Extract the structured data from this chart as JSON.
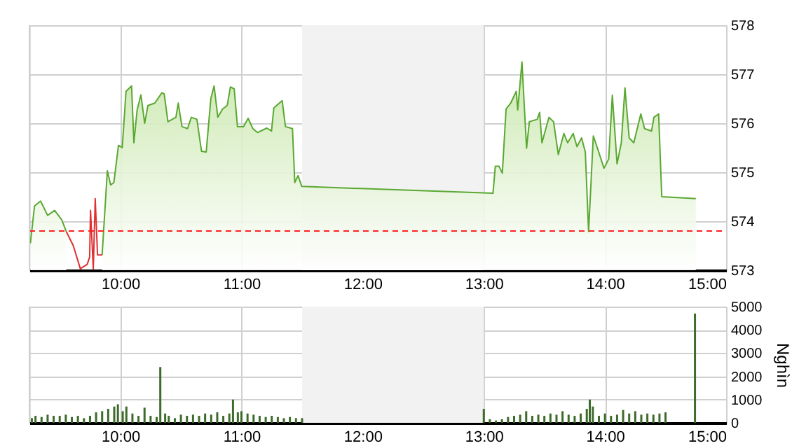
{
  "chart_data": [
    {
      "type": "area",
      "xlim": [
        9.25,
        15
      ],
      "ylim": [
        573,
        578
      ],
      "yticks": [
        573,
        574,
        575,
        576,
        577,
        578
      ],
      "xticks": [
        {
          "value": 10,
          "label": "10:00"
        },
        {
          "value": 11,
          "label": "11:00"
        },
        {
          "value": 12,
          "label": "12:00"
        },
        {
          "value": 13,
          "label": "13:00"
        },
        {
          "value": 14,
          "label": "14:00"
        },
        {
          "value": 15,
          "label": "15:00"
        }
      ],
      "grid": true,
      "legend": false,
      "bands": [
        {
          "axis": "x",
          "from": 11.5,
          "to": 13.0,
          "color": "#f2f2f2"
        }
      ],
      "ref_lines": [
        {
          "axis": "y",
          "value": 573.8,
          "color": "#ff2020",
          "line_style": "dashed"
        }
      ],
      "series": [
        {
          "type": "area",
          "color": "#5aa832",
          "x": [
            9.258,
            9.292,
            9.342,
            9.4,
            9.458,
            9.516,
            9.554,
            9.612,
            9.67,
            9.727,
            9.747,
            9.754,
            9.777,
            9.793,
            9.812,
            9.85,
            9.893,
            9.92,
            9.947,
            9.985,
            10.016,
            10.047,
            10.093,
            10.112,
            10.139,
            10.17,
            10.201,
            10.228,
            10.285,
            10.343,
            10.362,
            10.393,
            10.459,
            10.478,
            10.509,
            10.555,
            10.586,
            10.632,
            10.67,
            10.709,
            10.747,
            10.774,
            10.805,
            10.844,
            10.882,
            10.909,
            10.94,
            10.967,
            11.017,
            11.055,
            11.094,
            11.132,
            11.209,
            11.248,
            11.267,
            11.336,
            11.363,
            11.421,
            11.44,
            11.467,
            11.498,
            13.076,
            13.095,
            13.126,
            13.153,
            13.184,
            13.222,
            13.268,
            13.28,
            13.315,
            13.353,
            13.376,
            13.442,
            13.461,
            13.48,
            13.538,
            13.576,
            13.615,
            13.661,
            13.692,
            13.738,
            13.769,
            13.807,
            13.838,
            13.865,
            13.904,
            13.942,
            13.992,
            14.031,
            14.061,
            14.1,
            14.135,
            14.165,
            14.2,
            14.238,
            14.296,
            14.327,
            14.385,
            14.404,
            14.443,
            14.469,
            14.75
          ],
          "values": [
            573.55,
            574.31,
            574.41,
            574.12,
            574.22,
            574.03,
            573.79,
            null,
            null,
            null,
            null,
            null,
            null,
            null,
            null,
            573.31,
            575.03,
            574.74,
            574.79,
            575.55,
            575.5,
            576.65,
            576.76,
            575.6,
            576.27,
            576.58,
            576.0,
            576.36,
            576.41,
            576.62,
            576.6,
            576.03,
            576.12,
            576.41,
            575.93,
            575.89,
            576.12,
            576.08,
            575.43,
            575.41,
            576.5,
            576.76,
            576.12,
            576.29,
            576.36,
            576.74,
            576.7,
            575.93,
            575.93,
            576.1,
            575.89,
            575.81,
            575.9,
            575.84,
            576.31,
            576.46,
            575.93,
            575.89,
            574.79,
            574.93,
            574.71,
            574.57,
            575.12,
            575.12,
            574.98,
            576.29,
            576.41,
            576.65,
            576.27,
            577.25,
            575.49,
            576.03,
            576.08,
            576.22,
            575.6,
            576.12,
            576.03,
            575.36,
            575.79,
            575.6,
            575.79,
            575.52,
            575.7,
            575.41,
            573.79,
            575.74,
            575.46,
            575.08,
            575.27,
            576.57,
            575.17,
            575.6,
            576.72,
            575.7,
            575.6,
            576.19,
            575.89,
            575.84,
            576.12,
            576.19,
            574.5,
            574.46
          ]
        },
        {
          "type": "line",
          "color": "#e03030",
          "x": [
            9.554,
            9.612,
            9.67,
            9.727,
            9.747,
            9.754,
            9.777,
            9.793,
            9.812,
            9.85
          ],
          "values": [
            573.79,
            573.5,
            573.03,
            573.12,
            573.27,
            574.22,
            573.03,
            574.46,
            573.31,
            573.31
          ]
        }
      ]
    },
    {
      "type": "bar",
      "color": "#3d6b2a",
      "xlim": [
        9.25,
        15
      ],
      "ylim": [
        0,
        5000
      ],
      "yticks": [
        0,
        1000,
        2000,
        3000,
        4000,
        5000
      ],
      "ylabel": "Nghìn",
      "xticks": [
        {
          "value": 10,
          "label": "10:00"
        },
        {
          "value": 11,
          "label": "11:00"
        },
        {
          "value": 12,
          "label": "12:00"
        },
        {
          "value": 13,
          "label": "13:00"
        },
        {
          "value": 14,
          "label": "14:00"
        },
        {
          "value": 15,
          "label": "15:00"
        }
      ],
      "grid": true,
      "legend": false,
      "bands": [
        {
          "axis": "x",
          "from": 11.5,
          "to": 13.0,
          "color": "#f2f2f2"
        }
      ],
      "x": [
        9.27,
        9.3,
        9.35,
        9.4,
        9.45,
        9.5,
        9.55,
        9.6,
        9.65,
        9.7,
        9.75,
        9.8,
        9.85,
        9.9,
        9.95,
        9.98,
        10.02,
        10.05,
        10.1,
        10.15,
        10.2,
        10.25,
        10.3,
        10.33,
        10.37,
        10.4,
        10.45,
        10.5,
        10.55,
        10.6,
        10.65,
        10.7,
        10.75,
        10.8,
        10.85,
        10.9,
        10.93,
        10.97,
        11.0,
        11.05,
        11.1,
        11.15,
        11.2,
        11.25,
        11.3,
        11.35,
        11.4,
        11.45,
        11.5,
        13.0,
        13.05,
        13.1,
        13.15,
        13.2,
        13.25,
        13.3,
        13.35,
        13.4,
        13.45,
        13.5,
        13.55,
        13.6,
        13.65,
        13.7,
        13.75,
        13.8,
        13.85,
        13.875,
        13.9,
        13.95,
        14.0,
        14.05,
        14.1,
        14.15,
        14.2,
        14.25,
        14.3,
        14.35,
        14.4,
        14.45,
        14.5,
        14.743
      ],
      "values": [
        200,
        300,
        250,
        350,
        300,
        300,
        350,
        250,
        300,
        200,
        300,
        450,
        500,
        600,
        700,
        800,
        500,
        700,
        400,
        300,
        650,
        300,
        250,
        2400,
        400,
        300,
        200,
        350,
        300,
        350,
        300,
        400,
        350,
        450,
        300,
        400,
        1000,
        450,
        500,
        400,
        350,
        300,
        250,
        300,
        250,
        200,
        250,
        200,
        200,
        600,
        150,
        100,
        150,
        250,
        300,
        350,
        500,
        300,
        350,
        300,
        400,
        350,
        500,
        350,
        300,
        400,
        600,
        1000,
        700,
        300,
        400,
        300,
        350,
        550,
        400,
        500,
        350,
        400,
        350,
        400,
        450,
        4700
      ]
    }
  ]
}
